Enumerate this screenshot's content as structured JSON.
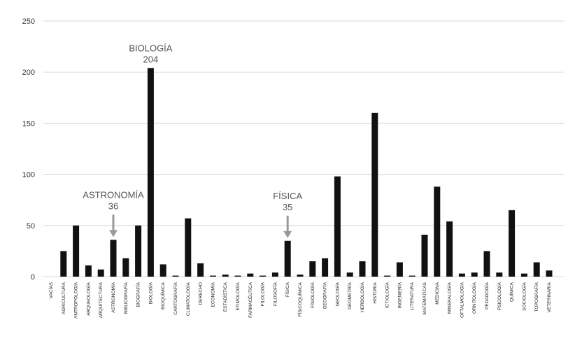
{
  "chart_data": {
    "type": "bar",
    "title": "",
    "xlabel": "",
    "ylabel": "",
    "ylim": [
      0,
      250
    ],
    "yticks": [
      0,
      50,
      100,
      150,
      200,
      250
    ],
    "grid": true,
    "bar_color": "#111111",
    "grid_color": "#d9d9d9",
    "annotation_color": "#999999",
    "categories": [
      "VACÍAS",
      "AGRICULTURA",
      "ANTROPOLOGÍA",
      "ARQUEOLOGÍA",
      "ARQUITECTURA",
      "ASTRONOMÍA",
      "BIBLIOGRAFÍA",
      "BIOGRAFÍA",
      "BIOLOGÍA",
      "BIOQUÍMICA",
      "CARTOGRAFÍA",
      "CLIMATOLOGÍA",
      "DERECHO",
      "ECONOMÍA",
      "ESTADÍSTICA",
      "ETIMOLOGÍA",
      "FARMACÉUTICA",
      "FILOLOGÍA",
      "FILOSOFÍA",
      "FÍSICA",
      "FÍSICOQUÍMICA",
      "FISIOLOGÍA",
      "GEOGRAFÍA",
      "GEOLOGÍA",
      "GEOMETRÍA",
      "HERBOLOGÍA",
      "HISTORIA",
      "ICTIOLOGÍA",
      "INGENIERÍA",
      "LITERATURA",
      "MATEMÁTICAS",
      "MEDICINA",
      "MINERALOGÍA",
      "OFTALMOLOGÍA",
      "ORNITOLOGÍA",
      "PEDAGOGÍA",
      "PSICOLOGÍA",
      "QUÍMICA",
      "SOCIOLOGÍA",
      "TOPOGRAFÍA",
      "VETERINARIA"
    ],
    "values": [
      0,
      25,
      50,
      11,
      7,
      36,
      18,
      50,
      204,
      12,
      1,
      57,
      13,
      1,
      2,
      1,
      3,
      1,
      4,
      35,
      2,
      15,
      18,
      98,
      4,
      15,
      160,
      1,
      14,
      1,
      41,
      88,
      54,
      3,
      4,
      25,
      4,
      65,
      3,
      14,
      6
    ],
    "annotations": [
      {
        "category": "BIOLOGÍA",
        "lines": [
          "BIOLOGÍA",
          "204"
        ],
        "arrow": false
      },
      {
        "category": "ASTRONOMÍA",
        "lines": [
          "ASTRONOMÍA",
          "36"
        ],
        "arrow": true
      },
      {
        "category": "FÍSICA",
        "lines": [
          "FÍSICA",
          "35"
        ],
        "arrow": true
      }
    ]
  }
}
